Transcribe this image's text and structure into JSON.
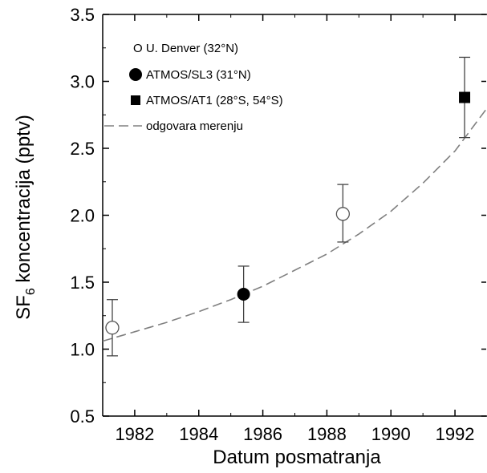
{
  "chart_data": {
    "type": "scatter",
    "xlabel": "Datum posmatranja",
    "ylabel_main": "SF",
    "ylabel_sub": "6",
    "ylabel_rest": " koncentracija (pptv)",
    "xlim": [
      1981,
      1993
    ],
    "ylim": [
      0.5,
      3.5
    ],
    "x_ticks": [
      1982,
      1984,
      1986,
      1988,
      1990,
      1992
    ],
    "y_ticks": [
      "0.5",
      "1.0",
      "1.5",
      "2.0",
      "2.5",
      "3.0",
      "3.5"
    ],
    "x_minor_ticks": [
      1983,
      1985,
      1987,
      1989,
      1991
    ],
    "grid": false,
    "legend_placement": "top-left",
    "series": [
      {
        "name": "U. Denver (32°N)",
        "legend_label": "O U. Denver (32°N)",
        "marker": "open-circle",
        "points": [
          {
            "x": 1981.3,
            "y": 1.16,
            "err_low": 0.95,
            "err_high": 1.37
          },
          {
            "x": 1988.5,
            "y": 2.01,
            "err_low": 1.8,
            "err_high": 2.23
          }
        ]
      },
      {
        "name": "ATMOS/SL3 (31°N)",
        "legend_label": "ATMOS/SL3 (31°N)",
        "marker": "filled-circle",
        "points": [
          {
            "x": 1985.4,
            "y": 1.41,
            "err_low": 1.2,
            "err_high": 1.62
          }
        ]
      },
      {
        "name": "ATMOS/AT1 (28°S, 54°S)",
        "legend_label": "ATMOS/AT1 (28°S, 54°S)",
        "marker": "filled-square",
        "points": [
          {
            "x": 1992.3,
            "y": 2.88,
            "err_low": 2.58,
            "err_high": 3.18
          }
        ]
      }
    ],
    "fit": {
      "name": "odgovara merenju",
      "style": "dashed",
      "color": "#808080",
      "x": [
        1981.0,
        1982.0,
        1983.0,
        1984.0,
        1985.0,
        1986.0,
        1987.0,
        1988.0,
        1989.0,
        1990.0,
        1991.0,
        1992.0,
        1993.0
      ],
      "y": [
        1.06,
        1.13,
        1.2,
        1.28,
        1.37,
        1.47,
        1.59,
        1.71,
        1.86,
        2.03,
        2.24,
        2.48,
        2.8
      ]
    }
  }
}
